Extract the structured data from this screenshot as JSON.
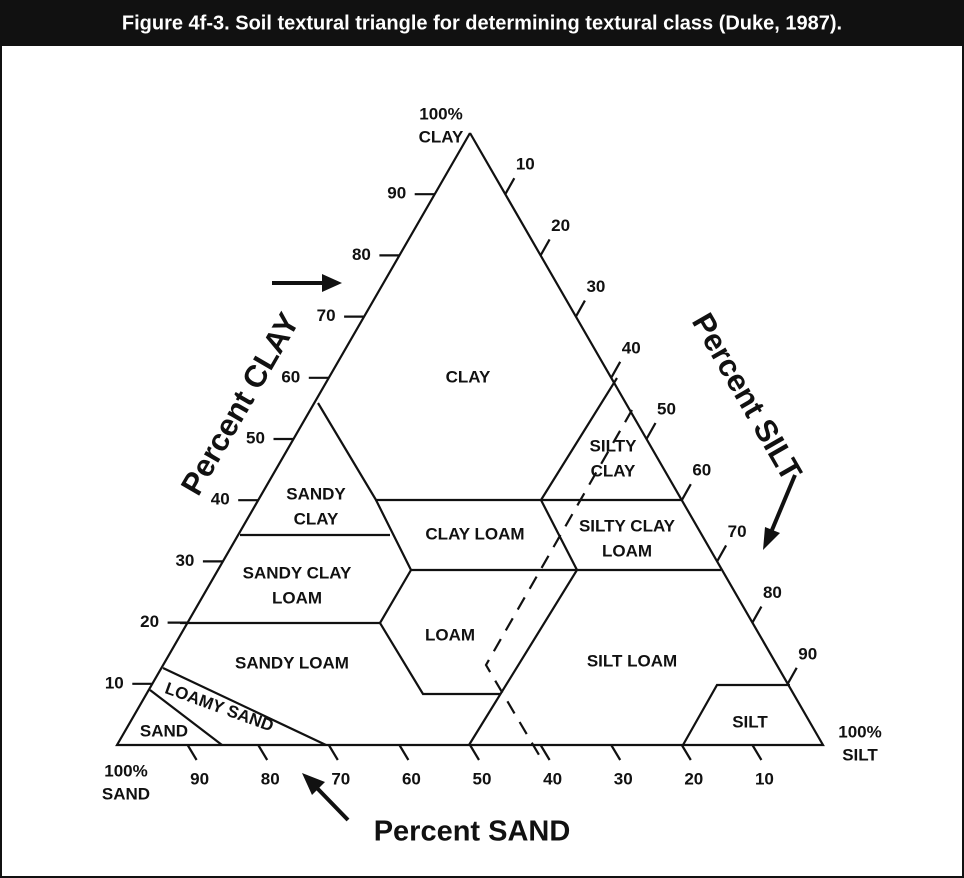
{
  "title": "Figure 4f-3. Soil textural triangle for determining textural class (Duke, 1987).",
  "corners": {
    "clay": [
      "100%",
      "CLAY"
    ],
    "silt": [
      "100%",
      "SILT"
    ],
    "sand": [
      "100%",
      "SAND"
    ]
  },
  "axes": {
    "clay": {
      "label": "Percent CLAY",
      "ticks": [
        10,
        20,
        30,
        40,
        50,
        60,
        70,
        80,
        90
      ]
    },
    "silt": {
      "label": "Percent SILT",
      "ticks": [
        10,
        20,
        30,
        40,
        50,
        60,
        70,
        80,
        90
      ]
    },
    "sand": {
      "label": "Percent SAND",
      "ticks": [
        10,
        20,
        30,
        40,
        50,
        60,
        70,
        80,
        90
      ]
    }
  },
  "regions": [
    {
      "name": [
        "CLAY"
      ]
    },
    {
      "name": [
        "SILTY",
        "CLAY"
      ]
    },
    {
      "name": [
        "SANDY",
        "CLAY"
      ]
    },
    {
      "name": [
        "CLAY LOAM"
      ]
    },
    {
      "name": [
        "SILTY CLAY",
        "LOAM"
      ]
    },
    {
      "name": [
        "SANDY CLAY",
        "LOAM"
      ]
    },
    {
      "name": [
        "LOAM"
      ]
    },
    {
      "name": [
        "SANDY LOAM"
      ]
    },
    {
      "name": [
        "SILT LOAM"
      ]
    },
    {
      "name": [
        "LOAMY SAND"
      ]
    },
    {
      "name": [
        "SAND"
      ]
    },
    {
      "name": [
        "SILT"
      ]
    }
  ]
}
